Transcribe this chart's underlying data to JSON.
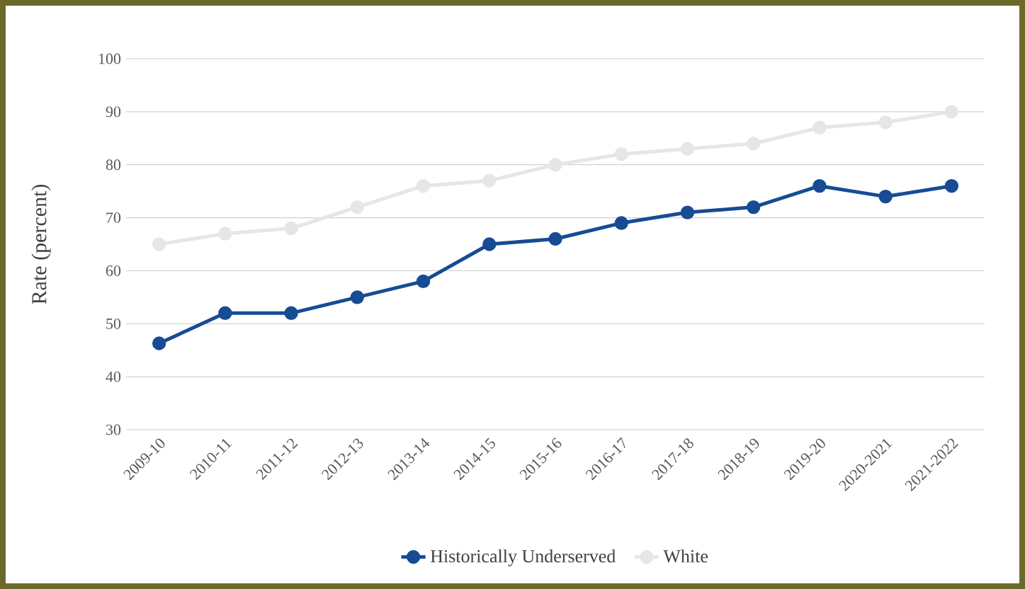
{
  "chart_data": {
    "type": "line",
    "ylabel": "Rate (percent)",
    "categories": [
      "2009-10",
      "2010-11",
      "2011-12",
      "2012-13",
      "2013-14",
      "2014-15",
      "2015-16",
      "2016-17",
      "2017-18",
      "2018-19",
      "2019-20",
      "2020-2021",
      "2021-2022"
    ],
    "series": [
      {
        "name": "Historically Underserved",
        "color": "#174b94",
        "values": [
          46.3,
          52,
          52,
          55,
          58,
          65,
          66,
          69,
          71,
          72,
          76,
          74,
          76
        ]
      },
      {
        "name": "White",
        "color": "#e6e6e6",
        "values": [
          65,
          67,
          68,
          72,
          76,
          77,
          80,
          82,
          83,
          84,
          87,
          88,
          90
        ]
      }
    ],
    "ylim": [
      30,
      100
    ],
    "yticks": [
      30,
      40,
      50,
      60,
      70,
      80,
      90,
      100
    ],
    "grid": "y",
    "legend": "bottom",
    "marker": "circle",
    "line_style": "solid"
  }
}
